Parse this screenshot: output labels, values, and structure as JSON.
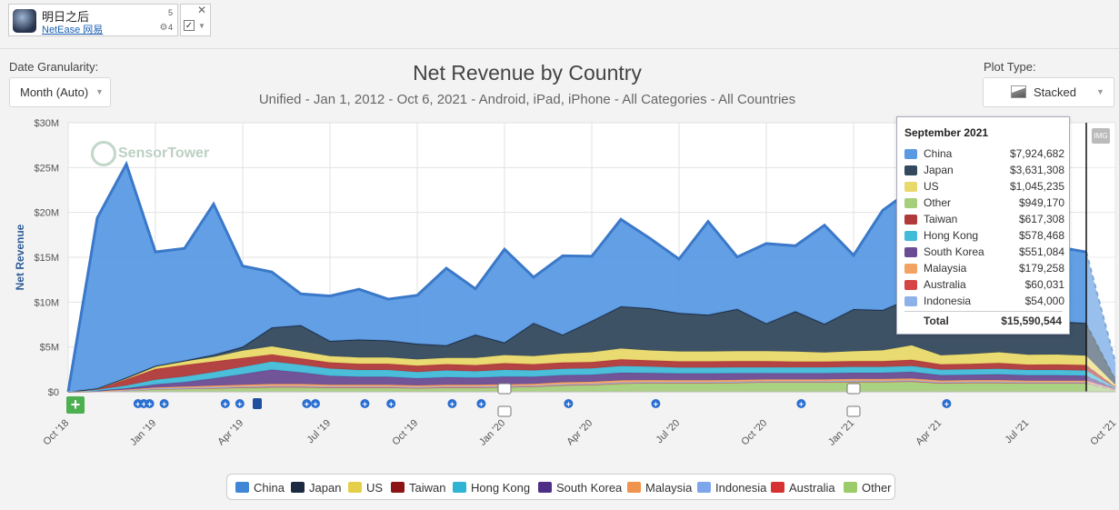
{
  "app": {
    "name": "明日之后",
    "publisher": "NetEase 网易",
    "ios_count": "5",
    "android_count": "4"
  },
  "controls": {
    "date_granularity_label": "Date Granularity:",
    "date_granularity_value": "Month (Auto)",
    "plot_type_label": "Plot Type:",
    "plot_type_value": "Stacked",
    "img_button": "IMG",
    "add_button": "+"
  },
  "watermark": "SensorTower",
  "chart_data": {
    "type": "area",
    "stacked": true,
    "title": "Net Revenue by Country",
    "subtitle": "Unified - Jan 1, 2012 - Oct 6, 2021 - Android, iPad, iPhone - All Categories - All Countries",
    "xlabel": "",
    "ylabel": "Net Revenue",
    "ylim": [
      0,
      30000000
    ],
    "y_ticks": [
      "$0",
      "$5M",
      "$10M",
      "$15M",
      "$20M",
      "$25M",
      "$30M"
    ],
    "x_ticks": [
      "Oct '18",
      "Jan '19",
      "Apr '19",
      "Jul '19",
      "Oct '19",
      "Jan '20",
      "Apr '20",
      "Jul '20",
      "Oct '20",
      "Jan '21",
      "Apr '21",
      "Jul '21",
      "Oct '21"
    ],
    "categories": [
      "Oct '18",
      "Nov '18",
      "Dec '18",
      "Jan '19",
      "Feb '19",
      "Mar '19",
      "Apr '19",
      "May '19",
      "Jun '19",
      "Jul '19",
      "Aug '19",
      "Sep '19",
      "Oct '19",
      "Nov '19",
      "Dec '19",
      "Jan '20",
      "Feb '20",
      "Mar '20",
      "Apr '20",
      "May '20",
      "Jun '20",
      "Jul '20",
      "Aug '20",
      "Sep '20",
      "Oct '20",
      "Nov '20",
      "Dec '20",
      "Jan '21",
      "Feb '21",
      "Mar '21",
      "Apr '21",
      "May '21",
      "Jun '21",
      "Jul '21",
      "Aug '21",
      "Sep '21",
      "Oct '21"
    ],
    "series": [
      {
        "name": "Other",
        "color": "#a6cf7c",
        "values": [
          0,
          50000,
          150000,
          300000,
          350000,
          400000,
          450000,
          500000,
          500000,
          450000,
          450000,
          450000,
          400000,
          450000,
          450000,
          500000,
          550000,
          700000,
          750000,
          900000,
          950000,
          950000,
          950000,
          1000000,
          1050000,
          1050000,
          1050000,
          1100000,
          1100000,
          1150000,
          950000,
          1000000,
          1000000,
          950000,
          950000,
          949170,
          200000
        ]
      },
      {
        "name": "Australia",
        "color": "#d64545",
        "values": [
          0,
          5000,
          20000,
          40000,
          50000,
          60000,
          70000,
          80000,
          80000,
          70000,
          70000,
          70000,
          65000,
          70000,
          70000,
          75000,
          75000,
          80000,
          80000,
          85000,
          80000,
          80000,
          80000,
          75000,
          75000,
          70000,
          70000,
          70000,
          70000,
          70000,
          65000,
          65000,
          65000,
          62000,
          62000,
          60031,
          10000
        ]
      },
      {
        "name": "Indonesia",
        "color": "#8fb1ea",
        "values": [
          0,
          5000,
          15000,
          30000,
          40000,
          50000,
          60000,
          70000,
          70000,
          60000,
          60000,
          60000,
          55000,
          60000,
          60000,
          60000,
          60000,
          60000,
          60000,
          60000,
          60000,
          55000,
          55000,
          55000,
          55000,
          55000,
          55000,
          55000,
          55000,
          55000,
          55000,
          55000,
          55000,
          54000,
          54000,
          54000,
          10000
        ]
      },
      {
        "name": "Malaysia",
        "color": "#f4a261",
        "values": [
          0,
          20000,
          60000,
          120000,
          150000,
          180000,
          200000,
          220000,
          220000,
          200000,
          200000,
          200000,
          190000,
          200000,
          200000,
          210000,
          200000,
          220000,
          220000,
          230000,
          220000,
          210000,
          210000,
          200000,
          200000,
          200000,
          200000,
          200000,
          200000,
          200000,
          190000,
          190000,
          190000,
          185000,
          185000,
          179258,
          40000
        ]
      },
      {
        "name": "South Korea",
        "color": "#6a4c93",
        "values": [
          0,
          50000,
          150000,
          350000,
          500000,
          800000,
          1200000,
          1600000,
          1300000,
          1000000,
          900000,
          900000,
          800000,
          850000,
          800000,
          850000,
          800000,
          800000,
          800000,
          850000,
          800000,
          750000,
          750000,
          750000,
          700000,
          700000,
          700000,
          700000,
          700000,
          750000,
          600000,
          600000,
          650000,
          600000,
          600000,
          551084,
          100000
        ]
      },
      {
        "name": "Hong Kong",
        "color": "#41bcd8",
        "values": [
          0,
          100000,
          300000,
          500000,
          600000,
          700000,
          800000,
          900000,
          850000,
          800000,
          750000,
          750000,
          700000,
          750000,
          700000,
          750000,
          700000,
          700000,
          700000,
          750000,
          700000,
          650000,
          650000,
          650000,
          650000,
          650000,
          650000,
          650000,
          650000,
          650000,
          600000,
          600000,
          600000,
          580000,
          580000,
          578468,
          100000
        ]
      },
      {
        "name": "Taiwan",
        "color": "#b03a3a",
        "values": [
          0,
          100000,
          700000,
          1200000,
          1300000,
          1200000,
          1000000,
          800000,
          700000,
          700000,
          700000,
          700000,
          700000,
          700000,
          700000,
          750000,
          700000,
          700000,
          700000,
          750000,
          700000,
          700000,
          700000,
          700000,
          700000,
          650000,
          650000,
          650000,
          650000,
          700000,
          600000,
          600000,
          650000,
          600000,
          620000,
          617308,
          100000
        ]
      },
      {
        "name": "US",
        "color": "#e8d96a",
        "values": [
          0,
          50000,
          150000,
          300000,
          400000,
          500000,
          800000,
          900000,
          800000,
          700000,
          700000,
          700000,
          700000,
          700000,
          800000,
          900000,
          900000,
          1000000,
          1100000,
          1200000,
          1100000,
          1100000,
          1100000,
          1100000,
          1100000,
          1100000,
          1000000,
          1100000,
          1200000,
          1600000,
          1000000,
          1100000,
          1200000,
          1100000,
          1100000,
          1045235,
          200000
        ]
      },
      {
        "name": "Japan",
        "color": "#34495e",
        "values": [
          0,
          10000,
          40000,
          60000,
          100000,
          250000,
          450000,
          2100000,
          2900000,
          1700000,
          2000000,
          1900000,
          1750000,
          1400000,
          2600000,
          1400000,
          3700000,
          2100000,
          3500000,
          4700000,
          4700000,
          4300000,
          4100000,
          4700000,
          3100000,
          4500000,
          3200000,
          4700000,
          4500000,
          5300000,
          3200000,
          3500000,
          3700000,
          3200000,
          3700000,
          3631308,
          700000
        ]
      },
      {
        "name": "China",
        "color": "#5b9ae3",
        "values": [
          0,
          19000000,
          23800000,
          12700000,
          12500000,
          16800000,
          9000000,
          6200000,
          3500000,
          5000000,
          5600000,
          4600000,
          5400000,
          8600000,
          5100000,
          10400000,
          5100000,
          8800000,
          7200000,
          9700000,
          7800000,
          6000000,
          10400000,
          5800000,
          8900000,
          7300000,
          11000000,
          6000000,
          11100000,
          12100000,
          7000000,
          8200000,
          8000000,
          7700000,
          8300000,
          7924682,
          1800000
        ]
      }
    ],
    "tooltip": {
      "title": "September 2021",
      "rows": [
        {
          "name": "China",
          "value": "$7,924,682",
          "color": "#5b9ae3"
        },
        {
          "name": "Japan",
          "value": "$3,631,308",
          "color": "#34495e"
        },
        {
          "name": "US",
          "value": "$1,045,235",
          "color": "#e8d96a"
        },
        {
          "name": "Other",
          "value": "$949,170",
          "color": "#a6cf7c"
        },
        {
          "name": "Taiwan",
          "value": "$617,308",
          "color": "#b03a3a"
        },
        {
          "name": "Hong Kong",
          "value": "$578,468",
          "color": "#41bcd8"
        },
        {
          "name": "South Korea",
          "value": "$551,084",
          "color": "#6a4c93"
        },
        {
          "name": "Malaysia",
          "value": "$179,258",
          "color": "#f4a261"
        },
        {
          "name": "Australia",
          "value": "$60,031",
          "color": "#d64545"
        },
        {
          "name": "Indonesia",
          "value": "$54,000",
          "color": "#8fb1ea"
        }
      ],
      "total_label": "Total",
      "total_value": "$15,590,544"
    },
    "legend": [
      {
        "name": "China",
        "color": "#3f86d6"
      },
      {
        "name": "Japan",
        "color": "#1a2a40"
      },
      {
        "name": "US",
        "color": "#e5cf4a"
      },
      {
        "name": "Taiwan",
        "color": "#8b1515"
      },
      {
        "name": "Hong Kong",
        "color": "#2fb4d4"
      },
      {
        "name": "South Korea",
        "color": "#4e2f86"
      },
      {
        "name": "Malaysia",
        "color": "#f0934f"
      },
      {
        "name": "Indonesia",
        "color": "#7ea6ea"
      },
      {
        "name": "Australia",
        "color": "#d63232"
      },
      {
        "name": "Other",
        "color": "#9ccc6a"
      }
    ]
  }
}
